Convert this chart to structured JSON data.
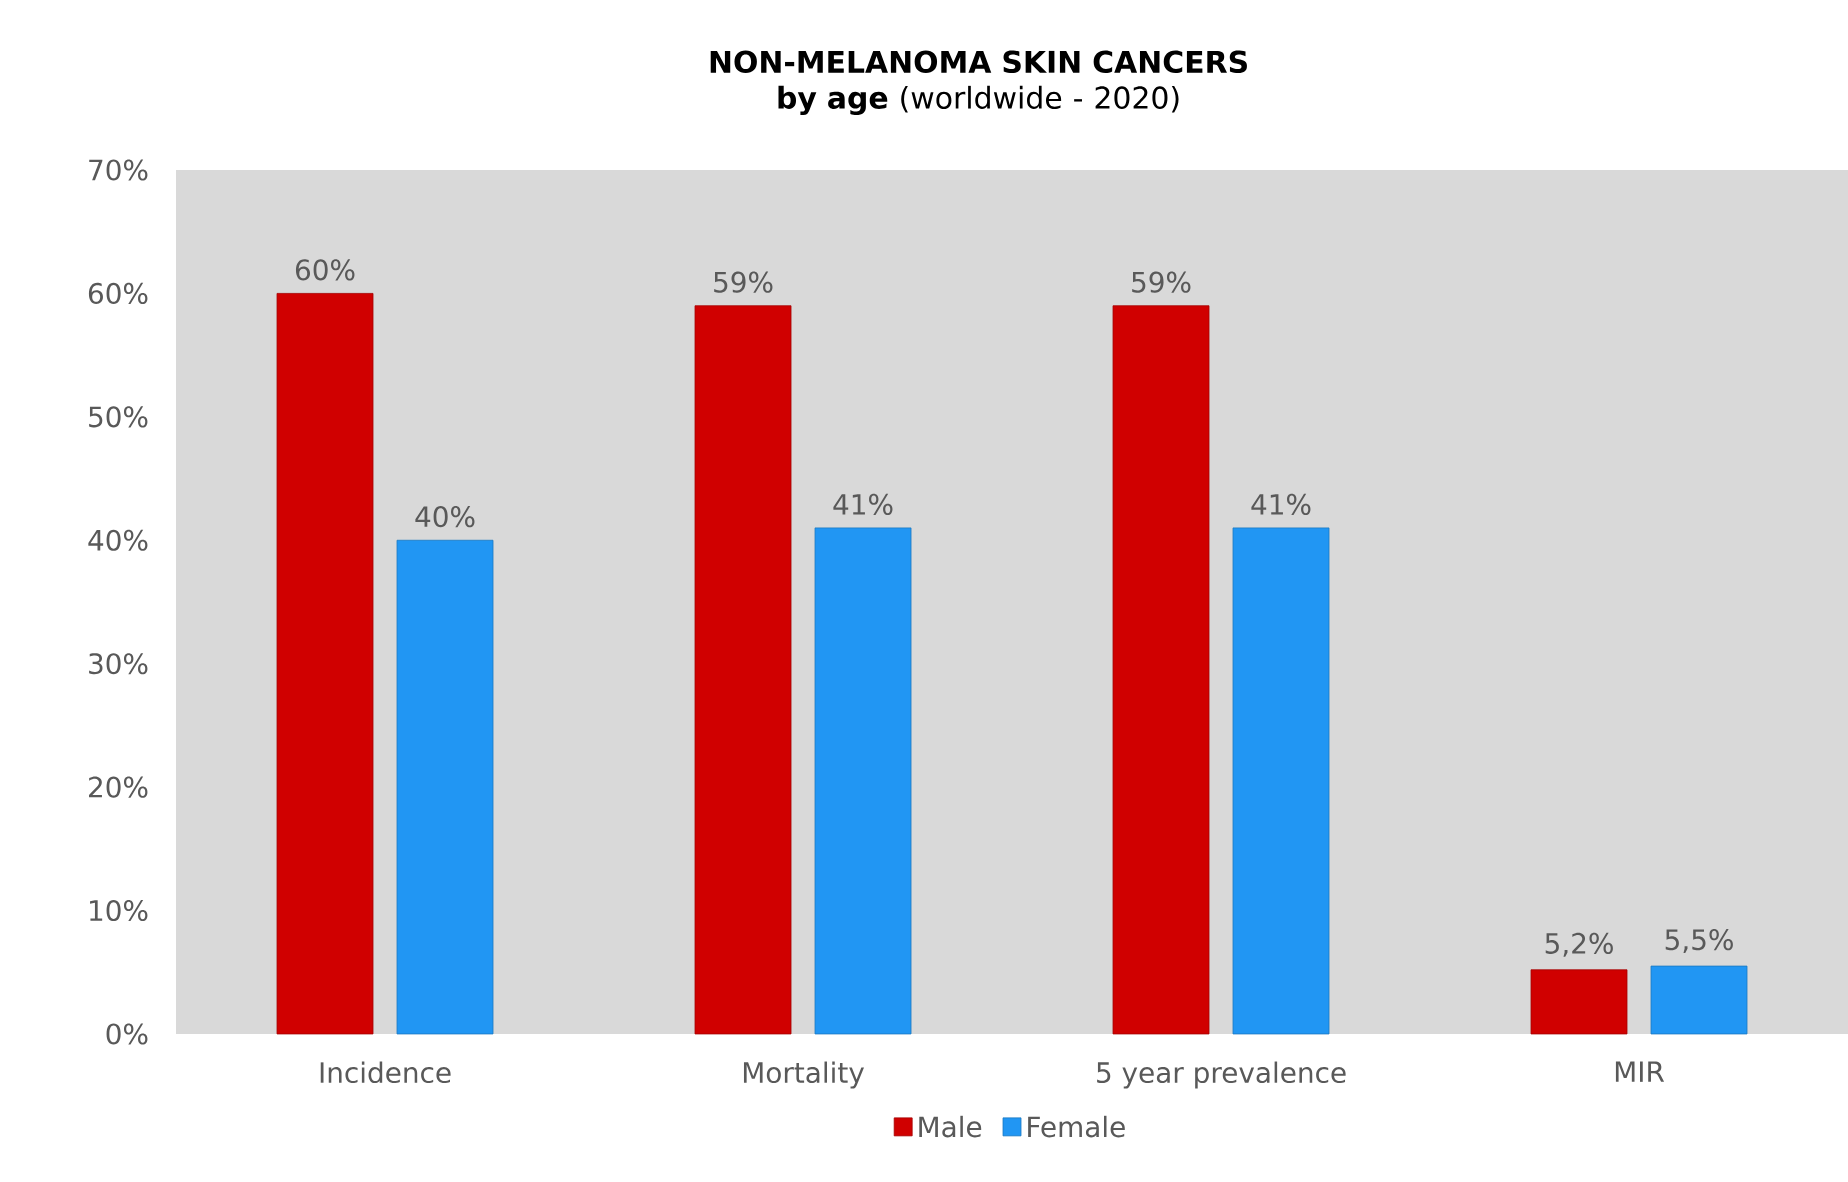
{
  "chart_data": {
    "type": "bar",
    "title": "**NON-MELANOMA SKIN CANCERS by age** (worldwide - 2020)",
    "categories": [
      "Incidence",
      "Mortality",
      "5 year prevalence",
      "MIR"
    ],
    "series": [
      {
        "name": "Male",
        "color": "#d00000",
        "values": [
          60,
          59,
          59,
          5.2
        ],
        "value_labels": [
          "60%",
          "59%",
          "59%",
          "5,2%"
        ]
      },
      {
        "name": "Female",
        "color": "#2196f3",
        "values": [
          40,
          41,
          41,
          5.5
        ],
        "value_labels": [
          "40%",
          "41%",
          "41%",
          "5,5%"
        ]
      }
    ],
    "ylim": [
      0,
      70
    ],
    "yticks": [
      {
        "value": 0,
        "label": "0%"
      },
      {
        "value": 10,
        "label": "10%"
      },
      {
        "value": 20,
        "label": "20%"
      },
      {
        "value": 30,
        "label": "30%"
      },
      {
        "value": 40,
        "label": "40%"
      },
      {
        "value": 50,
        "label": "50%"
      },
      {
        "value": 60,
        "label": "60%"
      },
      {
        "value": 70,
        "label": "70%"
      }
    ],
    "legend": "bottom"
  }
}
